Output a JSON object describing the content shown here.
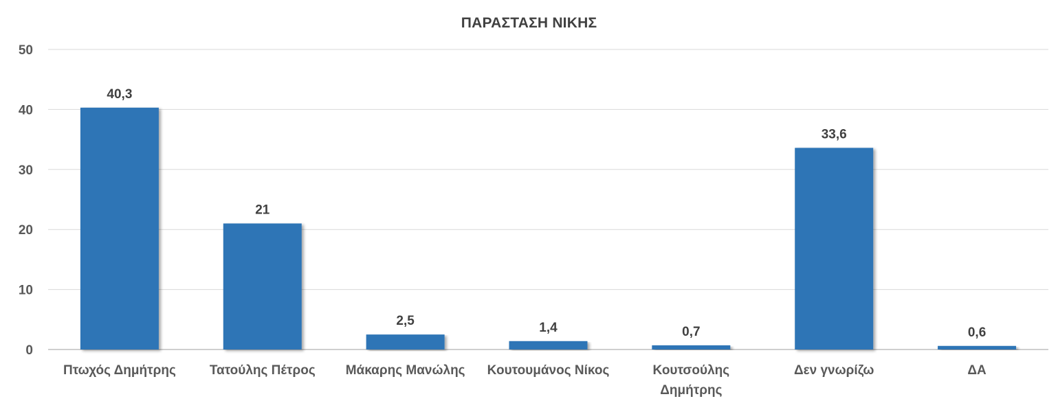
{
  "chart_data": {
    "type": "bar",
    "title": "ΠΑΡΑΣΤΑΣΗ ΝΙΚΗΣ",
    "categories": [
      [
        "Πτωχός Δημήτρης"
      ],
      [
        "Τατούλης Πέτρος"
      ],
      [
        "Μάκαρης Μανώλης"
      ],
      [
        "Κουτουμάνος Νίκος"
      ],
      [
        "Κουτσούλης",
        "Δημήτρης"
      ],
      [
        "Δεν γνωρίζω"
      ],
      [
        "ΔΑ"
      ]
    ],
    "values": [
      40.3,
      21,
      2.5,
      1.4,
      0.7,
      33.6,
      0.6
    ],
    "data_labels": [
      "40,3",
      "21",
      "2,5",
      "1,4",
      "0,7",
      "33,6",
      "0,6"
    ],
    "yticks": [
      0,
      10,
      20,
      30,
      40,
      50
    ],
    "ylim": [
      0,
      50
    ],
    "xlabel": "",
    "ylabel": "",
    "grid": true,
    "legend": "none",
    "colors": {
      "bar": "#2E75B6",
      "bar_shadow": "#C8C8C8",
      "grid": "#D9D9D9",
      "axis": "#BFBFBF"
    }
  }
}
